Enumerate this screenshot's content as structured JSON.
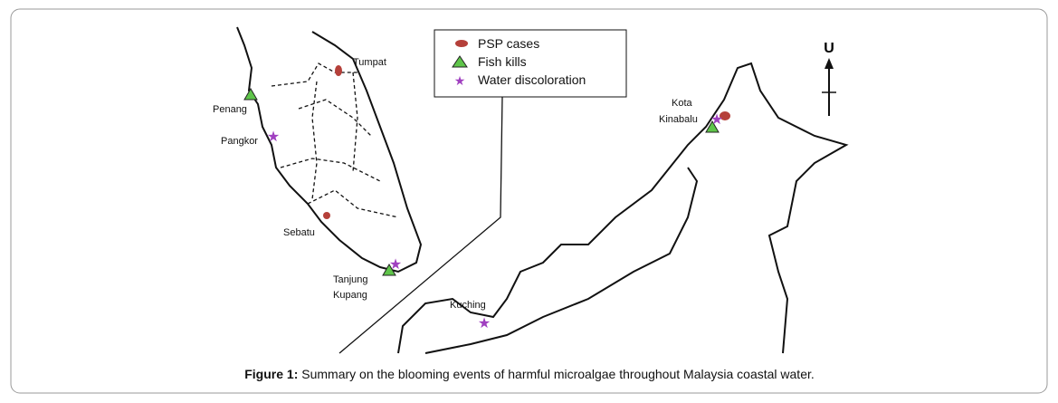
{
  "legend": [
    {
      "label": "PSP cases"
    },
    {
      "label": "Fish kills"
    },
    {
      "label": "Water discoloration"
    }
  ],
  "places": [
    {
      "lines": [
        "Tumpat"
      ]
    },
    {
      "lines": [
        "Penang"
      ]
    },
    {
      "lines": [
        "Pangkor"
      ]
    },
    {
      "lines": [
        "Sebatu"
      ]
    },
    {
      "lines": [
        "Tanjung",
        "Kupang"
      ]
    },
    {
      "lines": [
        "Kuching"
      ]
    },
    {
      "lines": [
        "Kota",
        "Kinabalu"
      ]
    }
  ],
  "compass": "U",
  "caption": {
    "label": "Figure 1:",
    "text": " Summary on the blooming events of harmful microalgae throughout Malaysia coastal water."
  }
}
